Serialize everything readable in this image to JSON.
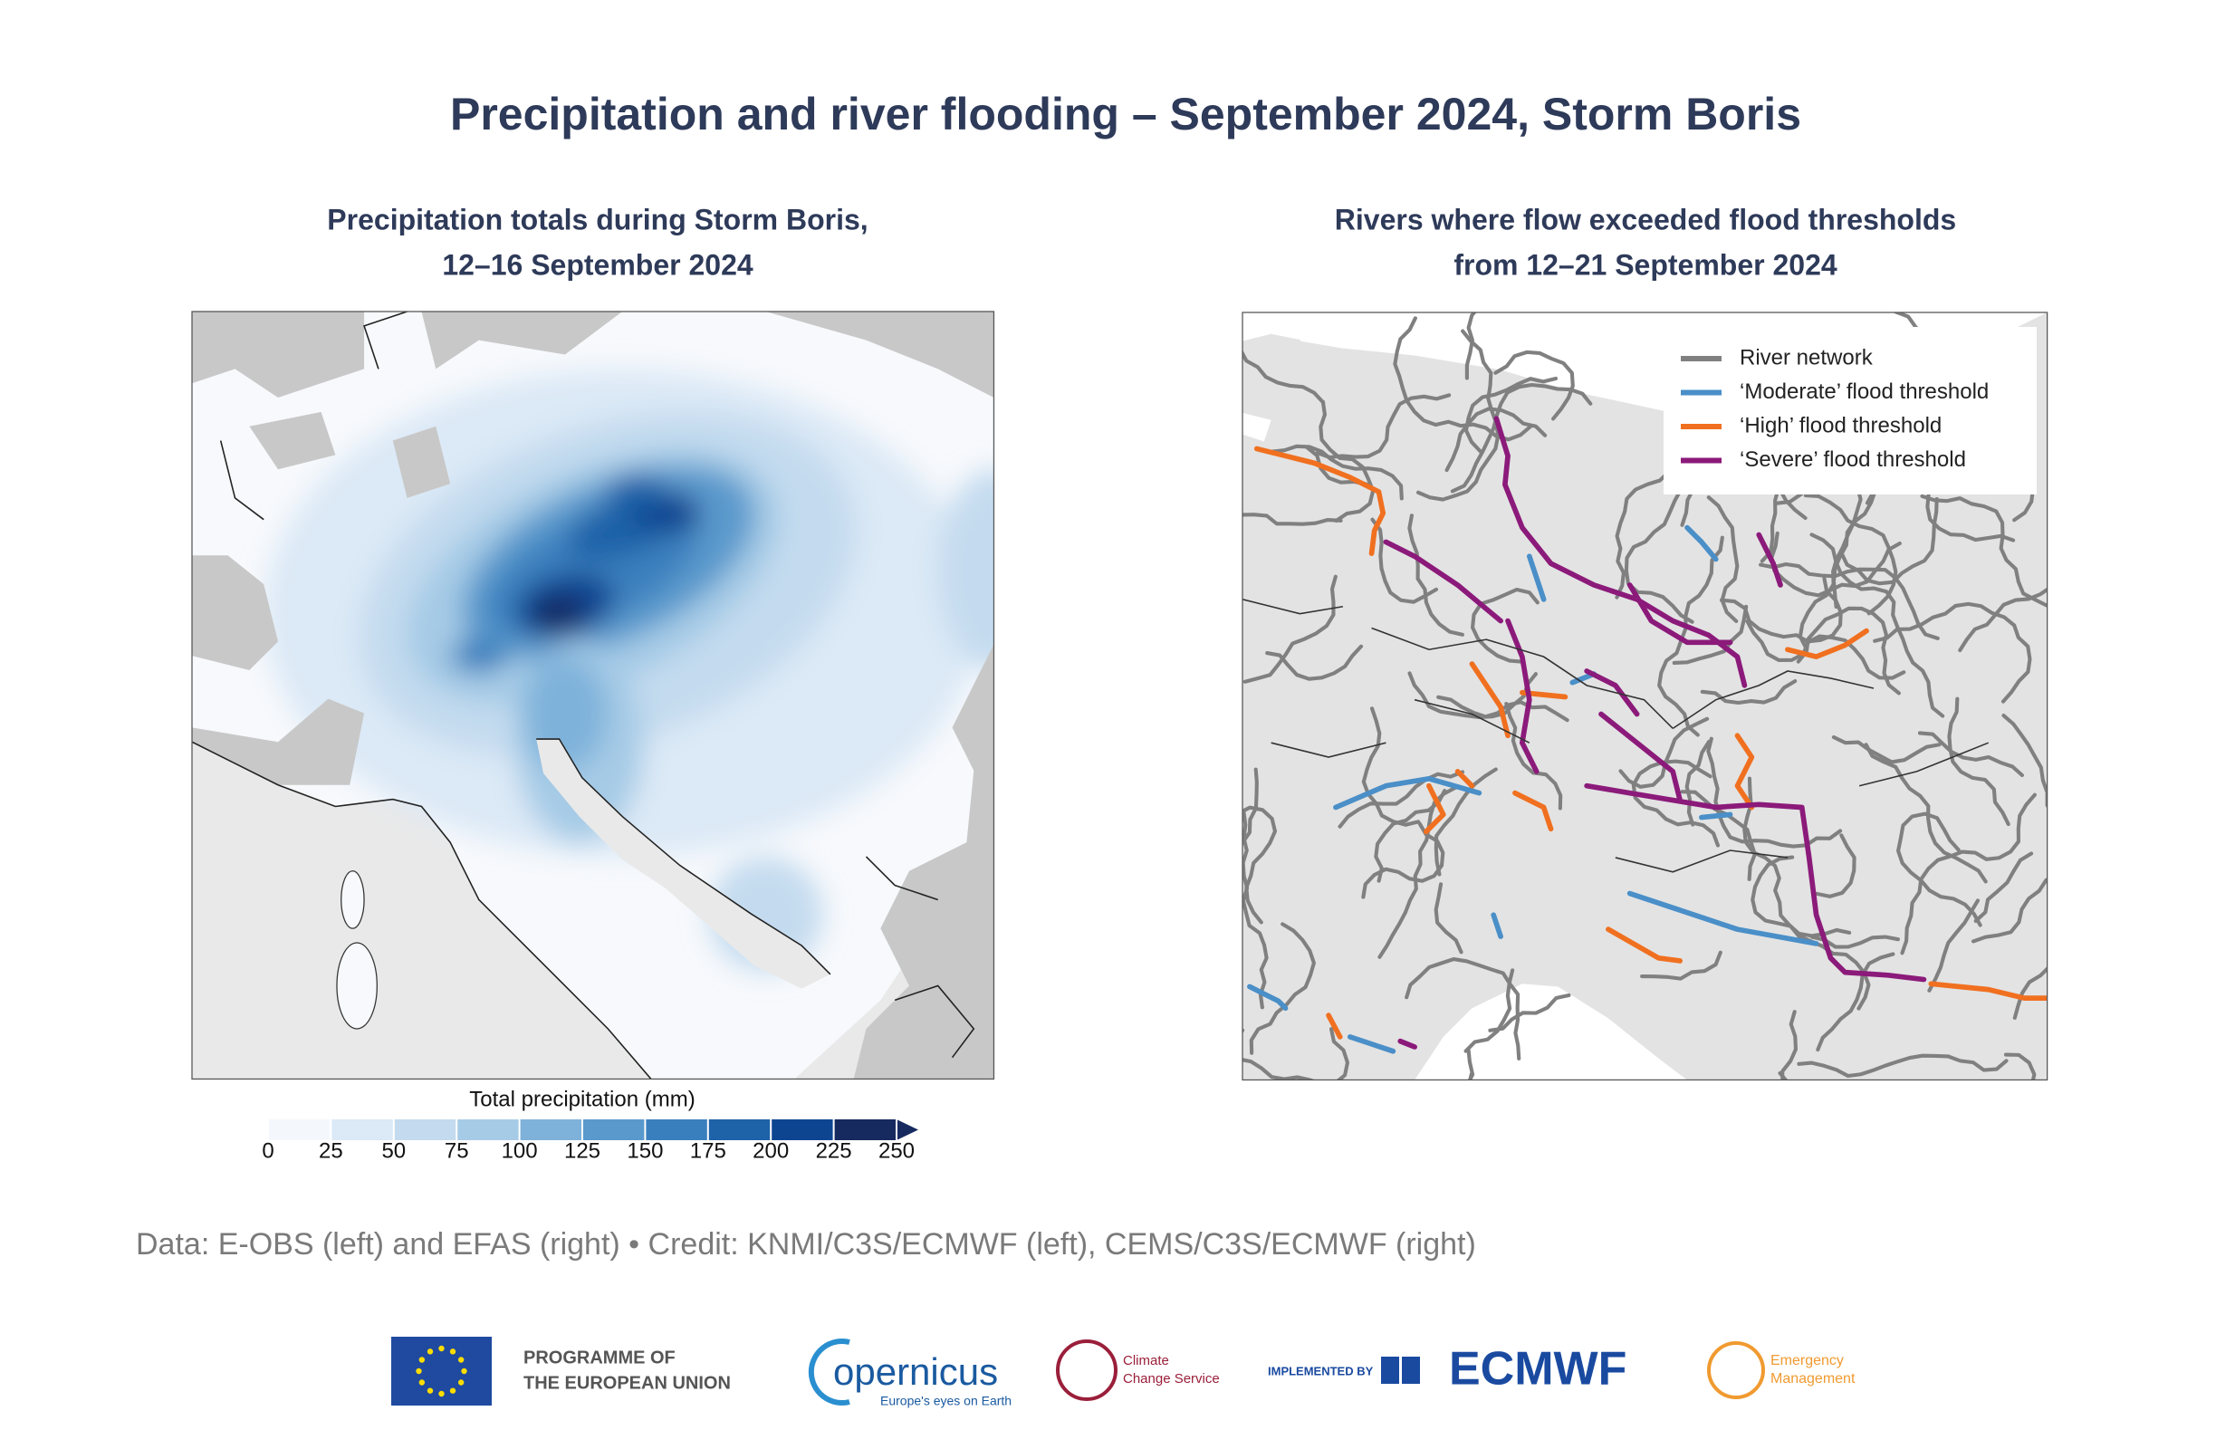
{
  "header": {
    "title": "Precipitation and river flooding – September 2024, Storm Boris"
  },
  "left_panel": {
    "title_lines": [
      "Precipitation totals during Storm Boris,",
      "12–16 September 2024"
    ],
    "colorbar": {
      "label": "Total precipitation (mm)",
      "ticks": [
        0,
        25,
        50,
        75,
        100,
        125,
        150,
        175,
        200,
        225,
        250
      ],
      "colors": [
        "#f4f8fd",
        "#dce9f6",
        "#c4dbef",
        "#a6cbe6",
        "#7fb2da",
        "#5a99cc",
        "#3a7fbd",
        "#1e62a8",
        "#0e4590",
        "#162a60"
      ]
    }
  },
  "right_panel": {
    "title_lines": [
      "Rivers where flow exceeded flood thresholds",
      "from 12–21 September 2024"
    ],
    "legend": [
      {
        "name": "River network",
        "color": "#808080"
      },
      {
        "name": "‘Moderate’ flood threshold",
        "color": "#4a8fc8"
      },
      {
        "name": "‘High’ flood threshold",
        "color": "#f07020"
      },
      {
        "name": "‘Severe’ flood threshold",
        "color": "#8b1a7a"
      }
    ]
  },
  "footer": {
    "credit": "Data: E-OBS (left) and EFAS (right) • Credit: KNMI/C3S/ECMWF (left), CEMS/C3S/ECMWF (right)",
    "logos": {
      "eu": [
        "PROGRAMME OF",
        "THE EUROPEAN UNION"
      ],
      "copernicus": [
        "opernicus",
        "Europe's eyes on Earth"
      ],
      "climate": [
        "Climate",
        "Change Service"
      ],
      "ecmwf": [
        "IMPLEMENTED BY",
        "ECMWF"
      ],
      "emergency": [
        "Emergency",
        "Management"
      ]
    }
  }
}
